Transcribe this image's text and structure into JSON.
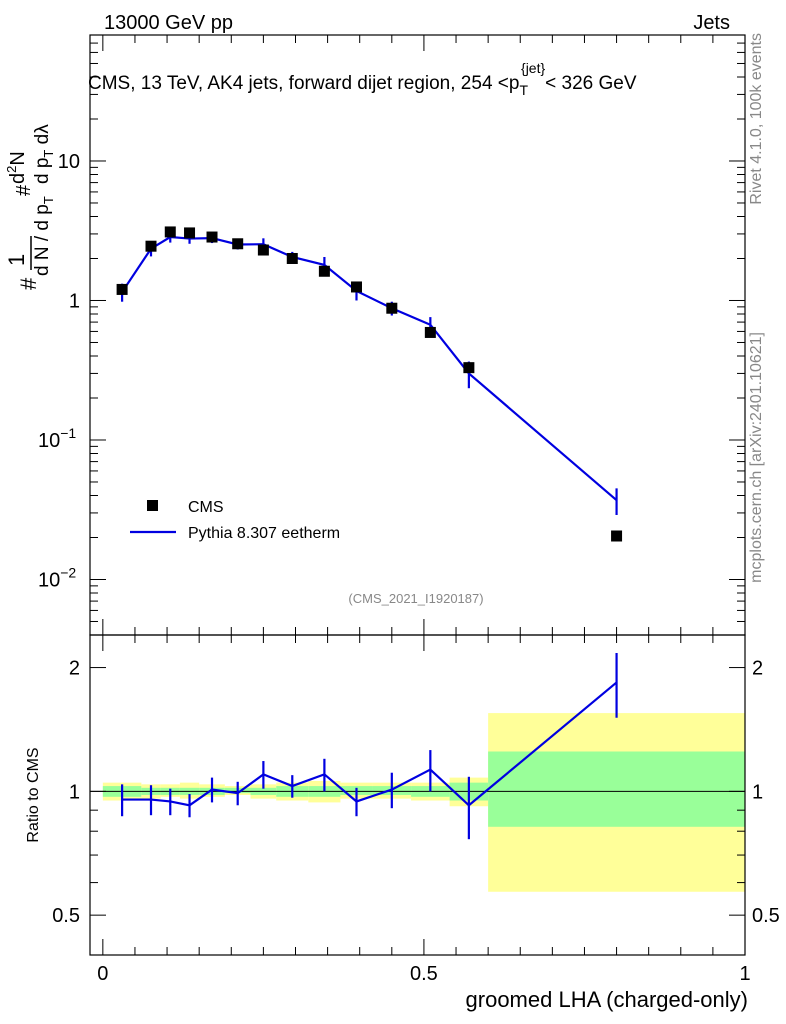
{
  "header": {
    "left": "13000 GeV pp",
    "right": "Jets"
  },
  "side": {
    "rivet": "Rivet 4.1.0,  100k events",
    "mcplots": "mcplots.cern.ch [arXiv:2401.10621]"
  },
  "chart_data": [
    {
      "type": "scatter",
      "title": "CMS, 13 TeV, AK4 jets, forward dijet region, 254 < p_T^{jet} < 326 GeV",
      "ylabel": "1/(dN/dp_T) d²N/(dp_T dλ)",
      "yscale": "log",
      "ylim": [
        0.004,
        80
      ],
      "xlim": [
        -0.02,
        1.0
      ],
      "annotation": "(CMS_2021_I1920187)",
      "legend_position": "lower-left",
      "y_ticks": [
        {
          "value": 0.01,
          "base": "10",
          "exp": "−2"
        },
        {
          "value": 0.1,
          "base": "10",
          "exp": "−1"
        },
        {
          "value": 1,
          "base": "1",
          "exp": ""
        },
        {
          "value": 10,
          "base": "10",
          "exp": ""
        }
      ],
      "series": [
        {
          "name": "CMS",
          "marker": "square",
          "color": "#000000",
          "x": [
            0.03,
            0.075,
            0.105,
            0.135,
            0.17,
            0.21,
            0.25,
            0.295,
            0.345,
            0.395,
            0.45,
            0.51,
            0.57,
            0.8
          ],
          "y": [
            1.2,
            2.45,
            3.1,
            3.05,
            2.85,
            2.55,
            2.3,
            2.0,
            1.62,
            1.25,
            0.88,
            0.59,
            0.33,
            0.0205
          ]
        },
        {
          "name": "Pythia 8.307 eetherm",
          "marker": "line",
          "color": "#0000e0",
          "x": [
            0.03,
            0.075,
            0.105,
            0.135,
            0.17,
            0.21,
            0.25,
            0.295,
            0.345,
            0.395,
            0.45,
            0.51,
            0.57,
            0.8
          ],
          "y": [
            1.15,
            2.35,
            2.85,
            2.78,
            2.8,
            2.52,
            2.53,
            2.05,
            1.8,
            1.17,
            0.88,
            0.67,
            0.3,
            0.037
          ],
          "yerr_low": [
            0.17,
            0.28,
            0.25,
            0.23,
            0.22,
            0.2,
            0.26,
            0.18,
            0.25,
            0.17,
            0.1,
            0.09,
            0.065,
            0.008
          ],
          "yerr_high": [
            0.17,
            0.28,
            0.25,
            0.23,
            0.22,
            0.2,
            0.26,
            0.18,
            0.25,
            0.17,
            0.1,
            0.09,
            0.065,
            0.008
          ]
        }
      ]
    },
    {
      "type": "line",
      "ylabel": "Ratio to CMS",
      "xlabel": "groomed LHA (charged-only)",
      "yscale": "log",
      "ylim": [
        0.4,
        2.4
      ],
      "xlim": [
        -0.02,
        1.0
      ],
      "y_ticks": [
        {
          "value": 0.5,
          "label": "0.5"
        },
        {
          "value": 1,
          "label": "1"
        },
        {
          "value": 2,
          "label": "2"
        }
      ],
      "x_ticks": [
        {
          "value": 0,
          "label": "0"
        },
        {
          "value": 0.5,
          "label": "0.5"
        },
        {
          "value": 1,
          "label": "1"
        }
      ],
      "bands": {
        "edges": [
          0.0,
          0.06,
          0.09,
          0.12,
          0.15,
          0.19,
          0.23,
          0.27,
          0.32,
          0.37,
          0.42,
          0.48,
          0.54,
          0.6,
          1.0
        ],
        "yellow_low": [
          0.95,
          0.96,
          0.97,
          0.96,
          0.97,
          0.98,
          0.96,
          0.95,
          0.94,
          0.96,
          0.96,
          0.95,
          0.92,
          0.57
        ],
        "yellow_high": [
          1.05,
          1.04,
          1.04,
          1.05,
          1.04,
          1.03,
          1.04,
          1.05,
          1.06,
          1.05,
          1.05,
          1.05,
          1.08,
          1.55
        ],
        "green_low": [
          0.97,
          0.98,
          0.98,
          0.98,
          0.98,
          0.99,
          0.98,
          0.97,
          0.97,
          0.98,
          0.98,
          0.97,
          0.95,
          0.82
        ],
        "green_high": [
          1.03,
          1.02,
          1.02,
          1.02,
          1.02,
          1.02,
          1.02,
          1.03,
          1.03,
          1.03,
          1.03,
          1.03,
          1.05,
          1.25
        ],
        "yellow_color": "#ffff99",
        "green_color": "#99ff99"
      },
      "series": [
        {
          "name": "Pythia 8.307 eetherm",
          "color": "#0000e0",
          "x": [
            0.03,
            0.075,
            0.105,
            0.135,
            0.17,
            0.21,
            0.25,
            0.295,
            0.345,
            0.395,
            0.45,
            0.51,
            0.57,
            0.8
          ],
          "y": [
            0.955,
            0.955,
            0.945,
            0.925,
            1.01,
            0.99,
            1.1,
            1.03,
            1.1,
            0.945,
            1.01,
            1.13,
            0.925,
            1.84
          ],
          "yerr_low": [
            0.085,
            0.08,
            0.07,
            0.06,
            0.07,
            0.065,
            0.085,
            0.065,
            0.1,
            0.075,
            0.1,
            0.13,
            0.16,
            0.33
          ],
          "yerr_high": [
            0.085,
            0.08,
            0.07,
            0.06,
            0.07,
            0.065,
            0.085,
            0.065,
            0.1,
            0.075,
            0.1,
            0.13,
            0.16,
            0.33
          ]
        }
      ]
    }
  ]
}
